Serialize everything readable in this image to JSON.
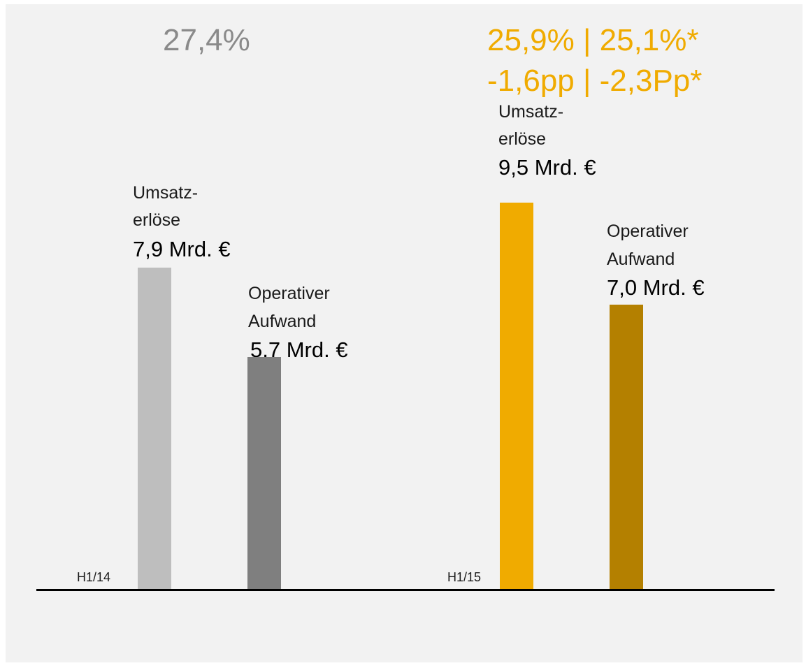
{
  "colors": {
    "background": "#f2f2f2",
    "h1_14_revenue": "#bebebe",
    "h1_14_opex": "#7f7f7f",
    "h1_15_revenue": "#f0ab00",
    "h1_15_opex": "#b48000",
    "accent_text": "#f0ab00",
    "grey_text": "#8a8a8a"
  },
  "groups": [
    {
      "period": "H1/14",
      "margin_text": "27,4%",
      "revenue": {
        "label_line1": "Umsatz-",
        "label_line2": "erlöse",
        "value_text": "7,9 Mrd. €"
      },
      "opex": {
        "label_line1": "Operativer",
        "label_line2": "Aufwand",
        "value_text": "5,7 Mrd. €"
      }
    },
    {
      "period": "H1/15",
      "margin_line1": "25,9% | 25,1%*",
      "margin_line2": "-1,6pp | -2,3Pp*",
      "revenue": {
        "label_line1": "Umsatz-",
        "label_line2": "erlöse",
        "value_text": "9,5 Mrd. €"
      },
      "opex": {
        "label_line1": "Operativer",
        "label_line2": "Aufwand",
        "value_text": "7,0 Mrd. €"
      }
    }
  ],
  "chart_data": {
    "type": "bar",
    "categories": [
      "H1/14",
      "H1/15"
    ],
    "series": [
      {
        "name": "Umsatzerlöse",
        "values": [
          7.9,
          9.5
        ]
      },
      {
        "name": "Operativer Aufwand",
        "values": [
          5.7,
          7.0
        ]
      }
    ],
    "unit": "Mrd. €",
    "title": "",
    "xlabel": "",
    "ylabel": "",
    "grid": false,
    "legend": "none"
  }
}
